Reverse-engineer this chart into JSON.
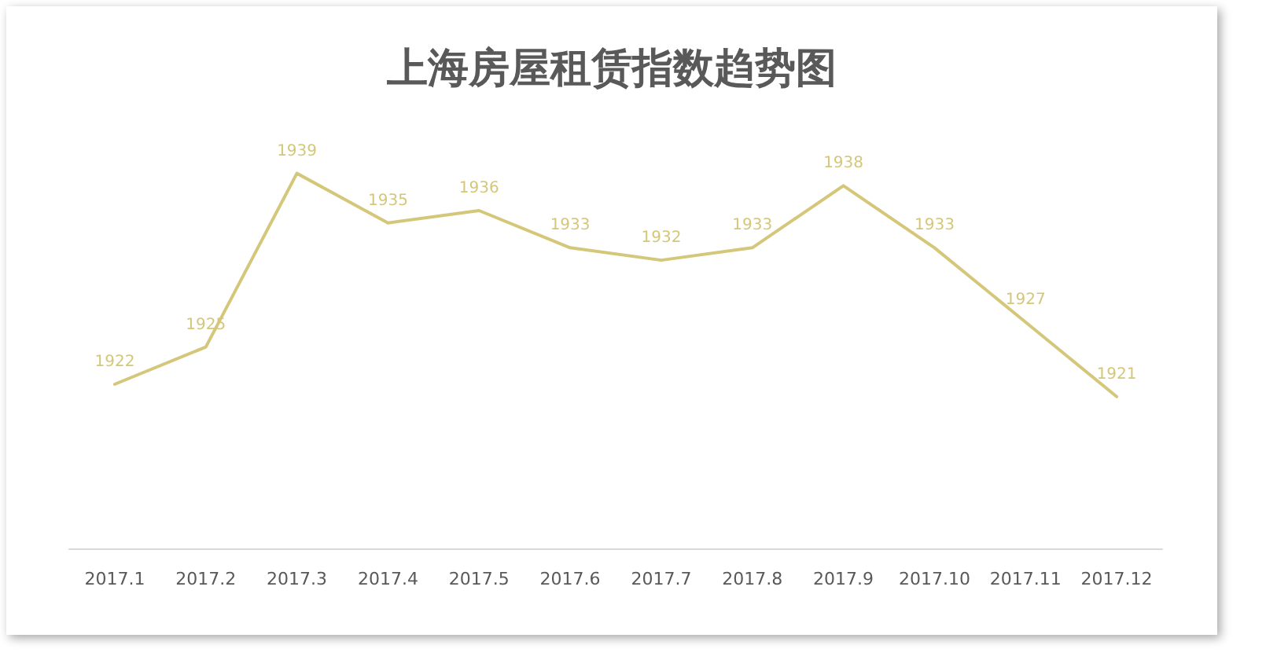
{
  "chart_data": {
    "type": "line",
    "title": "上海房屋租赁指数趋势图",
    "categories": [
      "2017.1",
      "2017.2",
      "2017.3",
      "2017.4",
      "2017.5",
      "2017.6",
      "2017.7",
      "2017.8",
      "2017.9",
      "2017.10",
      "2017.11",
      "2017.12"
    ],
    "values": [
      1922,
      1925,
      1939,
      1935,
      1936,
      1933,
      1932,
      1933,
      1938,
      1933,
      1927,
      1921
    ],
    "color": "#d4c77a",
    "data_labels": true
  }
}
